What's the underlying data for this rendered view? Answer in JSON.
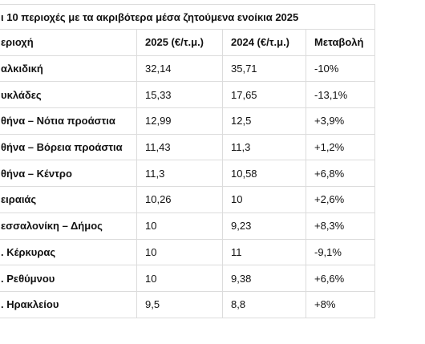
{
  "table": {
    "title": "ι 10 περιοχές με τα ακριβότερα μέσα ζητούμενα ενοίκια 2025",
    "header": [
      "εριοχή",
      "2025 (€/τ.μ.)",
      "2024 (€/τ.μ.)",
      "Μεταβολή"
    ],
    "rows": [
      [
        "αλκιδική",
        "32,14",
        "35,71",
        "-10%"
      ],
      [
        "υκλάδες",
        "15,33",
        "17,65",
        "-13,1%"
      ],
      [
        "θήνα – Νότια προάστια",
        "12,99",
        "12,5",
        "+3,9%"
      ],
      [
        "θήνα – Βόρεια προάστια",
        "11,43",
        "11,3",
        "+1,2%"
      ],
      [
        "θήνα – Κέντρο",
        "11,3",
        "10,58",
        "+6,8%"
      ],
      [
        "ειραιάς",
        "10,26",
        "10",
        "+2,6%"
      ],
      [
        "εσσαλονίκη – Δήμος",
        "10",
        "9,23",
        "+8,3%"
      ],
      [
        ". Κέρκυρας",
        "10",
        "11",
        "-9,1%"
      ],
      [
        ". Ρεθύμνου",
        "10",
        "9,38",
        "+6,6%"
      ],
      [
        ". Ηρακλείου",
        "9,5",
        "8,8",
        "+8%"
      ]
    ]
  }
}
